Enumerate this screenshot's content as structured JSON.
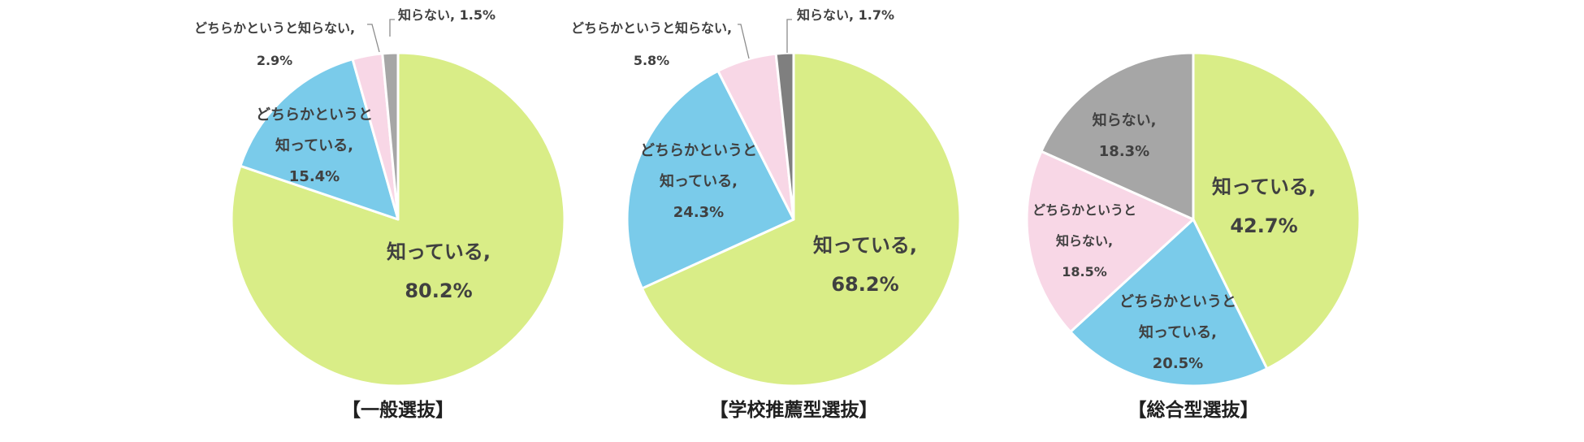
{
  "chart_data": [
    {
      "type": "pie",
      "title": "【一般選抜】",
      "slices": [
        {
          "key": "know",
          "name": "知っている",
          "value": 80.2,
          "label": "80.2%",
          "color": "#d9ed87"
        },
        {
          "key": "rather_know",
          "name": "どちらかというと知っている",
          "value": 15.4,
          "label": "15.4%",
          "color": "#7acbea"
        },
        {
          "key": "rather_not",
          "name": "どちらかというと知らない",
          "value": 2.9,
          "label": "2.9%",
          "color": "#f8d7e6"
        },
        {
          "key": "not_know",
          "name": "知らない",
          "value": 1.5,
          "label": "1.5%",
          "color": "#a6a6a6"
        }
      ]
    },
    {
      "type": "pie",
      "title": "【学校推薦型選抜】",
      "slices": [
        {
          "key": "know",
          "name": "知っている",
          "value": 68.2,
          "label": "68.2%",
          "color": "#d9ed87"
        },
        {
          "key": "rather_know",
          "name": "どちらかというと知っている",
          "value": 24.3,
          "label": "24.3%",
          "color": "#7acbea"
        },
        {
          "key": "rather_not",
          "name": "どちらかというと知らない",
          "value": 5.8,
          "label": "5.8%",
          "color": "#f8d7e6"
        },
        {
          "key": "not_know",
          "name": "知らない",
          "value": 1.7,
          "label": "1.7%",
          "color": "#7f7f7f"
        }
      ]
    },
    {
      "type": "pie",
      "title": "【総合型選抜】",
      "slices": [
        {
          "key": "know",
          "name": "知っている",
          "value": 42.7,
          "label": "42.7%",
          "color": "#d9ed87"
        },
        {
          "key": "rather_know",
          "name": "どちらかというと知っている",
          "value": 20.5,
          "label": "20.5%",
          "color": "#7acbea"
        },
        {
          "key": "rather_not",
          "name": "どちらかというと知らない",
          "value": 18.5,
          "label": "18.5%",
          "color": "#f8d7e6"
        },
        {
          "key": "not_know",
          "name": "知らない",
          "value": 18.3,
          "label": "18.3%",
          "color": "#a6a6a6"
        }
      ]
    }
  ]
}
